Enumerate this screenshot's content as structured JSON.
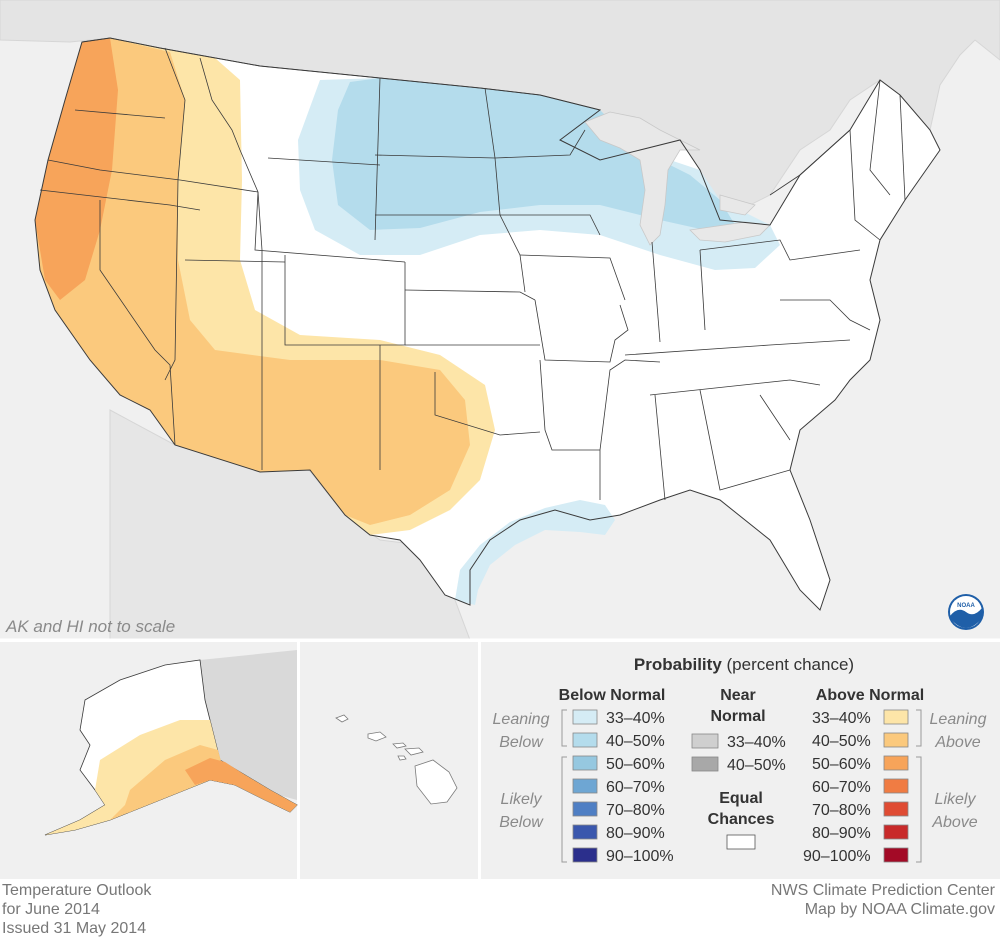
{
  "map": {
    "scale_note": "AK and HI not to scale",
    "logo_text": "NOAA"
  },
  "legend": {
    "title_bold": "Probability",
    "title_rest": " (percent chance)",
    "below_header": "Below Normal",
    "near_header_1": "Near",
    "near_header_2": "Normal",
    "above_header": "Above Normal",
    "leaning_below_1": "Leaning",
    "leaning_below_2": "Below",
    "likely_below_1": "Likely",
    "likely_below_2": "Below",
    "leaning_above_1": "Leaning",
    "leaning_above_2": "Above",
    "likely_above_1": "Likely",
    "likely_above_2": "Above",
    "equal_1": "Equal",
    "equal_2": "Chances",
    "below_items": [
      {
        "label": "33–40%",
        "color": "#d5ecf5"
      },
      {
        "label": "40–50%",
        "color": "#b4dcec"
      },
      {
        "label": "50–60%",
        "color": "#96c8e0"
      },
      {
        "label": "60–70%",
        "color": "#6ea6d3"
      },
      {
        "label": "70–80%",
        "color": "#4f7fc4"
      },
      {
        "label": "80–90%",
        "color": "#3a57ad"
      },
      {
        "label": "90–100%",
        "color": "#2b2f8c"
      }
    ],
    "near_items": [
      {
        "label": "33–40%",
        "color": "#cfcfcf"
      },
      {
        "label": "40–50%",
        "color": "#a8a8a8"
      }
    ],
    "above_items": [
      {
        "label": "33–40%",
        "color": "#fde5a8"
      },
      {
        "label": "40–50%",
        "color": "#fbc97d"
      },
      {
        "label": "50–60%",
        "color": "#f7a45a"
      },
      {
        "label": "60–70%",
        "color": "#f07c43"
      },
      {
        "label": "70–80%",
        "color": "#df4b33"
      },
      {
        "label": "80–90%",
        "color": "#c82a2a"
      },
      {
        "label": "90–100%",
        "color": "#a30a26"
      }
    ]
  },
  "footer": {
    "left_1": "Temperature Outlook",
    "left_2": "for June 2014",
    "left_3": "Issued 31 May 2014",
    "right_1": "NWS Climate Prediction Center",
    "right_2": "Map by NOAA Climate.gov"
  }
}
